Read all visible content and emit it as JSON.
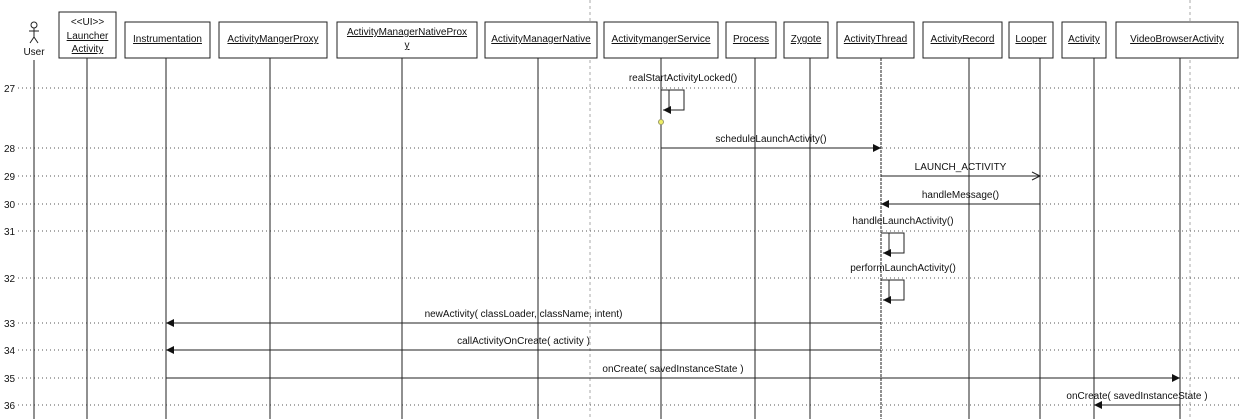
{
  "actor": {
    "name": "User",
    "icon": "stick-figure-icon"
  },
  "participants": [
    {
      "id": "launcher",
      "stereotype": "<<UI>>",
      "lines": [
        "Launcher",
        "Activity"
      ]
    },
    {
      "id": "instrumentation",
      "lines": [
        "Instrumentation"
      ]
    },
    {
      "id": "proxy",
      "lines": [
        "ActivityMangerProxy"
      ]
    },
    {
      "id": "nativeproxy",
      "lines": [
        "ActivityManagerNativeProx",
        "y"
      ]
    },
    {
      "id": "native",
      "lines": [
        "ActivityManagerNative"
      ]
    },
    {
      "id": "service",
      "lines": [
        "ActivitymangerService"
      ]
    },
    {
      "id": "process",
      "lines": [
        "Process"
      ]
    },
    {
      "id": "zygote",
      "lines": [
        "Zygote"
      ]
    },
    {
      "id": "thread",
      "lines": [
        "ActivityThread"
      ]
    },
    {
      "id": "record",
      "lines": [
        "ActivityRecord"
      ]
    },
    {
      "id": "looper",
      "lines": [
        "Looper"
      ]
    },
    {
      "id": "activity",
      "lines": [
        "Activity"
      ]
    },
    {
      "id": "videobrowser",
      "lines": [
        "VideoBrowserActivity"
      ]
    }
  ],
  "rows": [
    "27",
    "28",
    "29",
    "30",
    "31",
    "32",
    "33",
    "34",
    "35",
    "36"
  ],
  "messages": [
    {
      "row": "27",
      "from": "service",
      "to": "service",
      "label": "realStartActivityLocked()"
    },
    {
      "row": "28",
      "from": "service",
      "to": "thread",
      "label": "scheduleLaunchActivity()"
    },
    {
      "row": "29",
      "from": "thread",
      "to": "looper",
      "label": "LAUNCH_ACTIVITY",
      "async": true
    },
    {
      "row": "30",
      "from": "looper",
      "to": "thread",
      "label": "handleMessage()"
    },
    {
      "row": "31",
      "from": "thread",
      "to": "thread",
      "label": "handleLaunchActivity()"
    },
    {
      "row": "32",
      "from": "thread",
      "to": "thread",
      "label": "performLaunchActivity()"
    },
    {
      "row": "33",
      "from": "thread",
      "to": "instrumentation",
      "label": "newActivity( classLoader, className, intent)"
    },
    {
      "row": "34",
      "from": "thread",
      "to": "instrumentation",
      "label": "callActivityOnCreate( activity )"
    },
    {
      "row": "35",
      "from": "instrumentation",
      "to": "videobrowser",
      "label": "onCreate( savedInstanceState )"
    },
    {
      "row": "36",
      "from": "videobrowser",
      "to": "activity",
      "label": "onCreate( savedInstanceState )"
    }
  ]
}
